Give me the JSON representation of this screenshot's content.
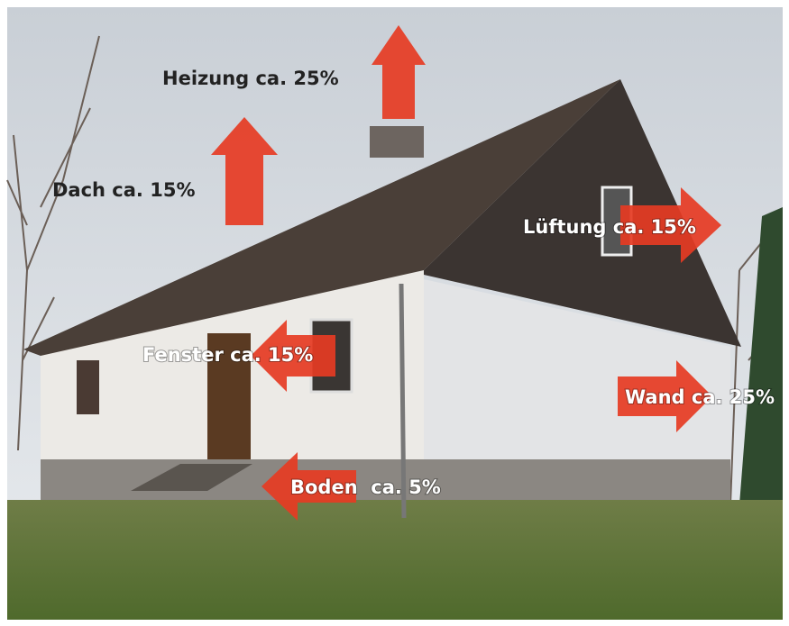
{
  "labels": [
    "Heizung ca. 25%",
    "Dach ca. 15%",
    "Lüftung ca. 15%",
    "Fenster ca. 15%",
    "Wand ca. 25%",
    "Boden  ca. 5%"
  ]
}
